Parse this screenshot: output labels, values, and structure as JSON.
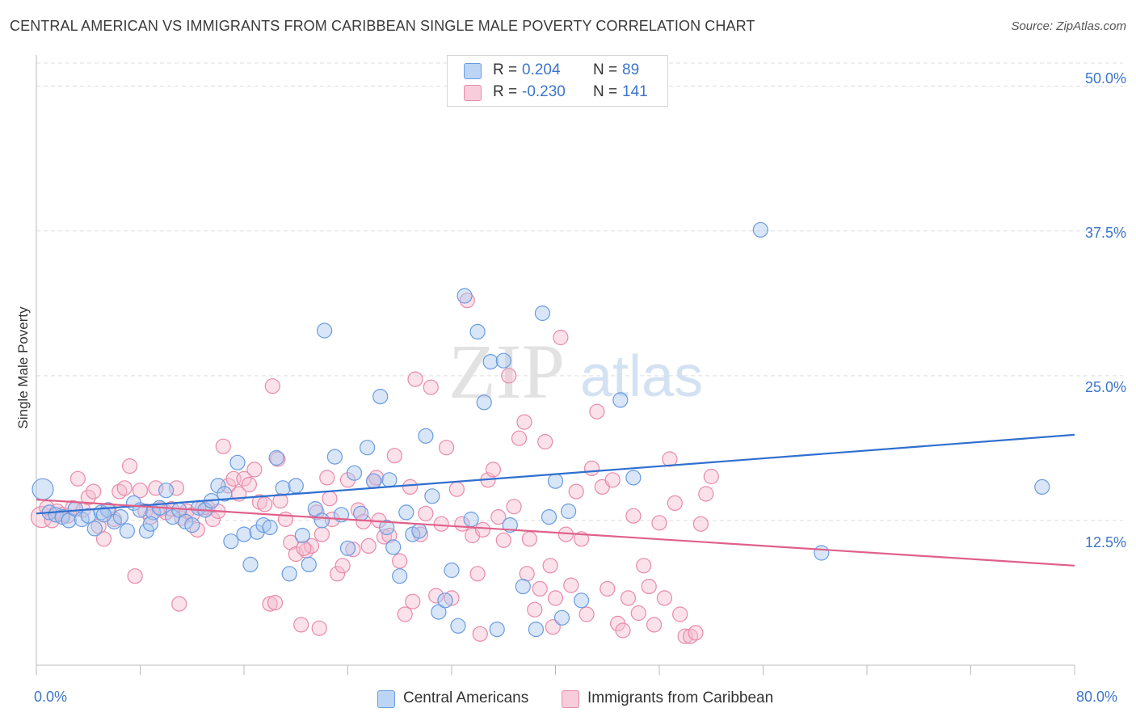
{
  "title": "CENTRAL AMERICAN VS IMMIGRANTS FROM CARIBBEAN SINGLE MALE POVERTY CORRELATION CHART",
  "source": "Source: ZipAtlas.com",
  "watermark": {
    "zip": "ZIP",
    "atlas": "atlas"
  },
  "legend": {
    "r_label": "R =",
    "n_label": "N =",
    "rows": [
      {
        "r": "0.204",
        "n": "89"
      },
      {
        "r": "-0.230",
        "n": "141"
      }
    ]
  },
  "colors": {
    "blue_fill": "#a9c8f0",
    "blue_stroke": "#6a9be0",
    "blue_line": "#2f6fd0",
    "pink_fill": "#f5bcd0",
    "pink_stroke": "#e98aa9",
    "pink_line": "#e0608a",
    "tick_text": "#3c75c9",
    "grid": "#dddddd"
  },
  "chart_data": {
    "type": "scatter",
    "title": "CENTRAL AMERICAN VS IMMIGRANTS FROM CARIBBEAN SINGLE MALE POVERTY CORRELATION CHART",
    "xlabel": "",
    "ylabel": "Single Male Poverty",
    "xlim": [
      0,
      80
    ],
    "ylim": [
      0,
      52
    ],
    "x_tick_labels": [
      "0.0%",
      "80.0%"
    ],
    "y_ticks": [
      12.5,
      25.0,
      37.5,
      50.0
    ],
    "y_tick_labels": [
      "12.5%",
      "25.0%",
      "37.5%",
      "50.0%"
    ],
    "legend_position": "top-center",
    "series": [
      {
        "name": "Central Americans",
        "r": 0.204,
        "n": 89,
        "trend": {
          "x": [
            0,
            80
          ],
          "y": [
            13.1,
            19.9
          ]
        },
        "points": [
          [
            0.5,
            15.2
          ],
          [
            1.0,
            13.2
          ],
          [
            1.5,
            13.0
          ],
          [
            2.0,
            12.8
          ],
          [
            2.5,
            12.5
          ],
          [
            3.0,
            13.5
          ],
          [
            3.5,
            12.6
          ],
          [
            4.0,
            12.9
          ],
          [
            4.5,
            11.8
          ],
          [
            5.0,
            13.2
          ],
          [
            5.5,
            13.4
          ],
          [
            6.0,
            12.4
          ],
          [
            6.5,
            12.8
          ],
          [
            7.0,
            11.6
          ],
          [
            7.5,
            14.0
          ],
          [
            8.0,
            13.4
          ],
          [
            8.5,
            11.6
          ],
          [
            9.0,
            13.2
          ],
          [
            9.5,
            13.6
          ],
          [
            10.0,
            15.1
          ],
          [
            10.5,
            12.8
          ],
          [
            11.0,
            13.4
          ],
          [
            11.5,
            12.4
          ],
          [
            12.0,
            12.1
          ],
          [
            12.5,
            13.6
          ],
          [
            13.0,
            13.4
          ],
          [
            13.5,
            14.2
          ],
          [
            14.0,
            15.5
          ],
          [
            14.5,
            14.8
          ],
          [
            15.0,
            10.7
          ],
          [
            15.5,
            17.5
          ],
          [
            16.0,
            11.3
          ],
          [
            16.5,
            8.7
          ],
          [
            17.0,
            11.5
          ],
          [
            17.5,
            12.1
          ],
          [
            18.0,
            11.9
          ],
          [
            18.5,
            17.9
          ],
          [
            19.0,
            15.3
          ],
          [
            19.5,
            7.9
          ],
          [
            20.0,
            15.5
          ],
          [
            20.5,
            11.2
          ],
          [
            21.0,
            8.7
          ],
          [
            21.5,
            13.5
          ],
          [
            22.0,
            12.5
          ],
          [
            22.2,
            28.9
          ],
          [
            23.0,
            18.0
          ],
          [
            23.5,
            13.0
          ],
          [
            24.0,
            10.1
          ],
          [
            24.5,
            16.6
          ],
          [
            25.0,
            13.1
          ],
          [
            25.5,
            18.8
          ],
          [
            26.0,
            15.9
          ],
          [
            26.5,
            23.2
          ],
          [
            27.0,
            11.9
          ],
          [
            27.5,
            10.2
          ],
          [
            28.0,
            7.7
          ],
          [
            28.5,
            13.2
          ],
          [
            29.0,
            11.3
          ],
          [
            29.5,
            11.6
          ],
          [
            30.0,
            19.8
          ],
          [
            30.5,
            14.6
          ],
          [
            31.0,
            4.6
          ],
          [
            31.5,
            5.6
          ],
          [
            32.0,
            8.2
          ],
          [
            32.5,
            3.4
          ],
          [
            33.0,
            31.9
          ],
          [
            33.5,
            12.6
          ],
          [
            34.0,
            28.8
          ],
          [
            34.5,
            22.7
          ],
          [
            35.0,
            26.2
          ],
          [
            35.5,
            3.1
          ],
          [
            36.0,
            26.3
          ],
          [
            36.5,
            12.1
          ],
          [
            37.5,
            6.8
          ],
          [
            38.5,
            3.1
          ],
          [
            39.0,
            30.4
          ],
          [
            39.5,
            12.8
          ],
          [
            40.0,
            15.9
          ],
          [
            40.5,
            4.1
          ],
          [
            41.0,
            13.3
          ],
          [
            42.0,
            5.6
          ],
          [
            45.0,
            22.9
          ],
          [
            46.0,
            16.2
          ],
          [
            55.8,
            37.6
          ],
          [
            60.5,
            9.7
          ],
          [
            77.5,
            15.4
          ],
          [
            5.2,
            13.0
          ],
          [
            8.8,
            12.2
          ],
          [
            27.2,
            16.0
          ]
        ]
      },
      {
        "name": "Immigrants from Caribbean",
        "r": -0.23,
        "n": 141,
        "trend": {
          "x": [
            0,
            80
          ],
          "y": [
            14.3,
            8.6
          ]
        },
        "points": [
          [
            0.4,
            12.8
          ],
          [
            0.8,
            13.6
          ],
          [
            1.2,
            12.5
          ],
          [
            1.6,
            13.3
          ],
          [
            2.0,
            13.0
          ],
          [
            2.4,
            12.9
          ],
          [
            2.8,
            13.6
          ],
          [
            3.2,
            16.1
          ],
          [
            3.6,
            13.4
          ],
          [
            4.0,
            14.5
          ],
          [
            4.4,
            15.0
          ],
          [
            4.8,
            12.0
          ],
          [
            5.2,
            10.9
          ],
          [
            5.6,
            13.4
          ],
          [
            6.0,
            12.6
          ],
          [
            6.4,
            15.0
          ],
          [
            6.8,
            15.3
          ],
          [
            7.2,
            17.2
          ],
          [
            7.6,
            7.7
          ],
          [
            8.0,
            15.1
          ],
          [
            8.4,
            13.3
          ],
          [
            8.8,
            12.8
          ],
          [
            9.2,
            15.3
          ],
          [
            9.6,
            13.5
          ],
          [
            10.0,
            13.2
          ],
          [
            10.4,
            13.5
          ],
          [
            10.8,
            15.3
          ],
          [
            11.2,
            12.7
          ],
          [
            11.6,
            13.3
          ],
          [
            12.0,
            13.0
          ],
          [
            12.4,
            11.7
          ],
          [
            12.8,
            13.6
          ],
          [
            13.2,
            13.6
          ],
          [
            13.6,
            12.6
          ],
          [
            14.0,
            13.3
          ],
          [
            14.4,
            18.9
          ],
          [
            14.8,
            15.5
          ],
          [
            15.2,
            16.1
          ],
          [
            15.6,
            14.8
          ],
          [
            16.0,
            16.1
          ],
          [
            16.4,
            15.6
          ],
          [
            16.8,
            16.9
          ],
          [
            17.2,
            14.1
          ],
          [
            17.6,
            13.9
          ],
          [
            18.0,
            5.3
          ],
          [
            18.4,
            5.4
          ],
          [
            18.8,
            14.2
          ],
          [
            19.2,
            12.6
          ],
          [
            19.6,
            10.6
          ],
          [
            20.0,
            9.6
          ],
          [
            20.4,
            3.5
          ],
          [
            20.8,
            9.9
          ],
          [
            21.2,
            10.3
          ],
          [
            21.6,
            13.2
          ],
          [
            22.0,
            11.3
          ],
          [
            22.4,
            16.2
          ],
          [
            22.8,
            12.6
          ],
          [
            23.2,
            7.9
          ],
          [
            23.6,
            8.6
          ],
          [
            24.0,
            16.0
          ],
          [
            24.4,
            10.0
          ],
          [
            24.8,
            13.4
          ],
          [
            25.2,
            12.4
          ],
          [
            25.6,
            10.3
          ],
          [
            26.0,
            15.9
          ],
          [
            26.4,
            12.5
          ],
          [
            26.8,
            11.1
          ],
          [
            27.2,
            11.2
          ],
          [
            27.6,
            18.1
          ],
          [
            28.0,
            9.0
          ],
          [
            28.4,
            4.4
          ],
          [
            28.8,
            15.4
          ],
          [
            29.2,
            24.7
          ],
          [
            29.6,
            11.3
          ],
          [
            30.0,
            13.1
          ],
          [
            30.4,
            24.0
          ],
          [
            30.8,
            6.0
          ],
          [
            31.2,
            12.2
          ],
          [
            31.6,
            18.8
          ],
          [
            32.0,
            5.8
          ],
          [
            32.4,
            15.2
          ],
          [
            32.8,
            12.2
          ],
          [
            33.2,
            31.5
          ],
          [
            33.6,
            11.2
          ],
          [
            34.0,
            7.9
          ],
          [
            34.4,
            11.7
          ],
          [
            34.8,
            16.0
          ],
          [
            35.2,
            16.9
          ],
          [
            35.6,
            12.8
          ],
          [
            36.0,
            10.8
          ],
          [
            36.4,
            25.0
          ],
          [
            36.8,
            13.7
          ],
          [
            37.2,
            19.6
          ],
          [
            37.6,
            21.0
          ],
          [
            38.0,
            10.9
          ],
          [
            38.4,
            4.8
          ],
          [
            38.8,
            6.6
          ],
          [
            39.2,
            19.3
          ],
          [
            39.6,
            8.6
          ],
          [
            40.0,
            5.8
          ],
          [
            40.4,
            28.3
          ],
          [
            40.8,
            11.3
          ],
          [
            41.2,
            6.9
          ],
          [
            41.6,
            15.0
          ],
          [
            42.0,
            10.9
          ],
          [
            42.4,
            4.4
          ],
          [
            42.8,
            17.0
          ],
          [
            43.2,
            21.9
          ],
          [
            43.6,
            15.4
          ],
          [
            44.0,
            6.6
          ],
          [
            44.4,
            16.0
          ],
          [
            44.8,
            3.6
          ],
          [
            45.2,
            3.0
          ],
          [
            45.6,
            5.8
          ],
          [
            46.0,
            12.9
          ],
          [
            46.4,
            4.5
          ],
          [
            46.8,
            8.6
          ],
          [
            47.2,
            6.8
          ],
          [
            47.6,
            3.5
          ],
          [
            48.0,
            12.3
          ],
          [
            48.4,
            5.8
          ],
          [
            48.8,
            17.8
          ],
          [
            49.2,
            14.0
          ],
          [
            49.6,
            4.4
          ],
          [
            50.0,
            2.5
          ],
          [
            50.4,
            2.5
          ],
          [
            50.8,
            2.8
          ],
          [
            51.2,
            12.2
          ],
          [
            51.6,
            14.8
          ],
          [
            52.0,
            16.3
          ],
          [
            11.0,
            5.3
          ],
          [
            18.2,
            24.1
          ],
          [
            18.6,
            17.8
          ],
          [
            20.6,
            10.1
          ],
          [
            21.8,
            3.2
          ],
          [
            22.6,
            14.4
          ],
          [
            26.2,
            16.2
          ],
          [
            29.0,
            5.5
          ],
          [
            34.2,
            2.7
          ],
          [
            37.8,
            7.9
          ],
          [
            39.8,
            3.3
          ]
        ]
      }
    ]
  },
  "bottom_legend": [
    "Central Americans",
    "Immigrants from Caribbean"
  ],
  "axis_label": "Single Male Poverty"
}
